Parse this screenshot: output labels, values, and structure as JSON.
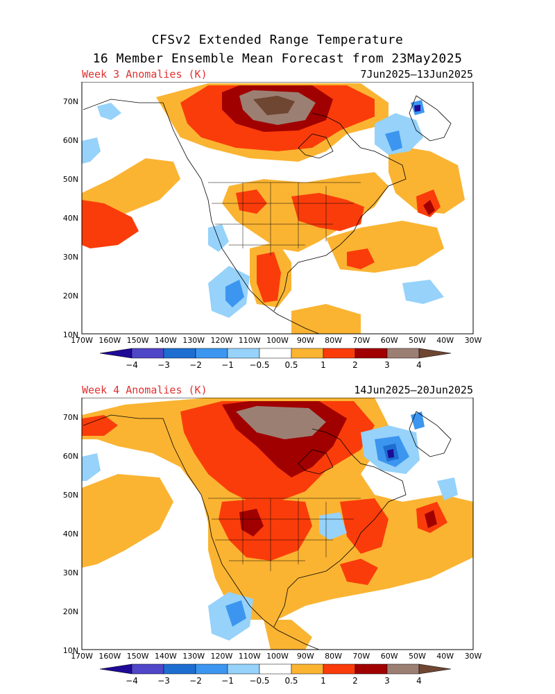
{
  "title": {
    "line1": "CFSv2 Extended Range Temperature",
    "line2": "16 Member Ensemble Mean Forecast from 23May2025"
  },
  "panels": [
    {
      "label": "Week 3 Anomalies (K)",
      "dates": "7Jun2025–13Jun2025"
    },
    {
      "label": "Week 4 Anomalies (K)",
      "dates": "14Jun2025–20Jun2025"
    }
  ],
  "axes": {
    "lat_labels": [
      "70N",
      "60N",
      "50N",
      "40N",
      "30N",
      "20N",
      "10N"
    ],
    "lon_labels": [
      "170W",
      "160W",
      "150W",
      "140W",
      "130W",
      "120W",
      "110W",
      "100W",
      "90W",
      "80W",
      "70W",
      "60W",
      "50W",
      "40W",
      "30W"
    ]
  },
  "colorbar": {
    "labels": [
      "−4",
      "−3",
      "−2",
      "−1",
      "−0.5",
      "0.5",
      "1",
      "2",
      "3",
      "4"
    ],
    "colors": {
      "lt_m4": "#1e0a96",
      "m4_m3": "#5046c8",
      "m3_m2": "#1e6ed2",
      "m2_m1": "#3c96f0",
      "m1_m05": "#96d2fa",
      "neutral": "#ffffff",
      "p05_p1": "#fab432",
      "p1_p2": "#fa3c0a",
      "p2_p3": "#a00000",
      "p3_p4": "#9c7f73",
      "gt_p4": "#6e4632"
    }
  }
}
